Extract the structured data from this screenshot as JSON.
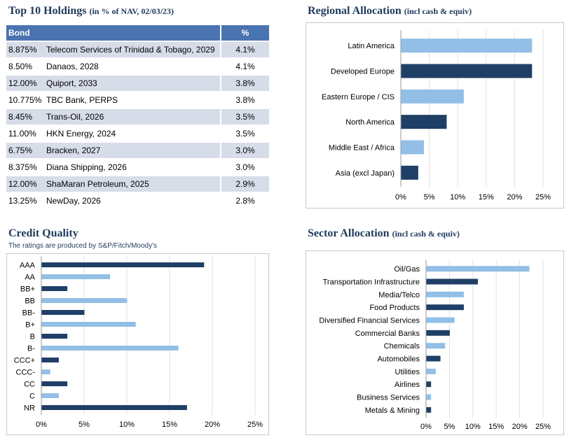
{
  "holdings": {
    "title": "Top 10 Holdings",
    "subtitle": "(in % of NAV, 02/03/23)",
    "col_bond": "Bond",
    "col_pct": "%",
    "rows": [
      {
        "coupon": "8.875%",
        "name": "Telecom Services of Trinidad & Tobago, 2029",
        "pct": "4.1%"
      },
      {
        "coupon": "8.50%",
        "name": "Danaos, 2028",
        "pct": "4.1%"
      },
      {
        "coupon": "12.00%",
        "name": "Quiport, 2033",
        "pct": "3.8%"
      },
      {
        "coupon": "10.775%",
        "name": "TBC Bank, PERPS",
        "pct": "3.8%"
      },
      {
        "coupon": "8.45%",
        "name": "Trans-Oil, 2026",
        "pct": "3.5%"
      },
      {
        "coupon": "11.00%",
        "name": "HKN Energy, 2024",
        "pct": "3.5%"
      },
      {
        "coupon": "6.75%",
        "name": "Bracken, 2027",
        "pct": "3.0%"
      },
      {
        "coupon": "8.375%",
        "name": "Diana Shipping, 2026",
        "pct": "3.0%"
      },
      {
        "coupon": "12.00%",
        "name": "ShaMaran Petroleum, 2025",
        "pct": "2.9%"
      },
      {
        "coupon": "13.25%",
        "name": "NewDay, 2026",
        "pct": "2.8%"
      }
    ]
  },
  "regional": {
    "title": "Regional Allocation",
    "subtitle": "(incl cash & equiv)"
  },
  "credit": {
    "title": "Credit Quality",
    "note": "The ratings are produced by S&P/Fitch/Moody's"
  },
  "sector": {
    "title": "Sector Allocation",
    "subtitle": "(incl cash & equiv)"
  },
  "colors": {
    "dark": "#1f3f66",
    "light": "#93bfe6",
    "header": "#4a73b2",
    "title": "#1f3a5c"
  },
  "chart_data": [
    {
      "id": "regional",
      "type": "bar",
      "orientation": "horizontal",
      "categories": [
        "Latin America",
        "Developed Europe",
        "Eastern Europe / CIS",
        "North America",
        "Middle East / Africa",
        "Asia (excl Japan)"
      ],
      "values": [
        23,
        23,
        11,
        8,
        4,
        3
      ],
      "colors": [
        "light",
        "dark",
        "light",
        "dark",
        "light",
        "dark"
      ],
      "xlim": [
        0,
        25
      ],
      "ticks": [
        "0%",
        "5%",
        "10%",
        "15%",
        "20%",
        "25%"
      ],
      "grid": true
    },
    {
      "id": "credit",
      "type": "bar",
      "orientation": "horizontal",
      "categories": [
        "AAA",
        "AA",
        "BB+",
        "BB",
        "BB-",
        "B+",
        "B",
        "B-",
        "CCC+",
        "CCC-",
        "CC",
        "C",
        "NR"
      ],
      "values": [
        19,
        8,
        3,
        10,
        5,
        11,
        3,
        16,
        2,
        1,
        3,
        2,
        17
      ],
      "colors": [
        "dark",
        "light",
        "dark",
        "light",
        "dark",
        "light",
        "dark",
        "light",
        "dark",
        "light",
        "dark",
        "light",
        "dark"
      ],
      "xlim": [
        0,
        25
      ],
      "ticks": [
        "0%",
        "5%",
        "10%",
        "15%",
        "20%",
        "25%"
      ],
      "grid": true
    },
    {
      "id": "sector",
      "type": "bar",
      "orientation": "horizontal",
      "categories": [
        "Oil/Gas",
        "Transportation Infrastructure",
        "Media/Telco",
        "Food Products",
        "Diversified Financial Services",
        "Commercial Banks",
        "Chemicals",
        "Automobiles",
        "Utilities",
        "Airlines",
        "Business Services",
        "Metals & Mining"
      ],
      "values": [
        22,
        11,
        8,
        8,
        6,
        5,
        4,
        3,
        2,
        1,
        1,
        1
      ],
      "colors": [
        "light",
        "dark",
        "light",
        "dark",
        "light",
        "dark",
        "light",
        "dark",
        "light",
        "dark",
        "light",
        "dark"
      ],
      "xlim": [
        0,
        25
      ],
      "ticks": [
        "0%",
        "5%",
        "10%",
        "15%",
        "20%",
        "25%"
      ],
      "grid": true
    }
  ]
}
